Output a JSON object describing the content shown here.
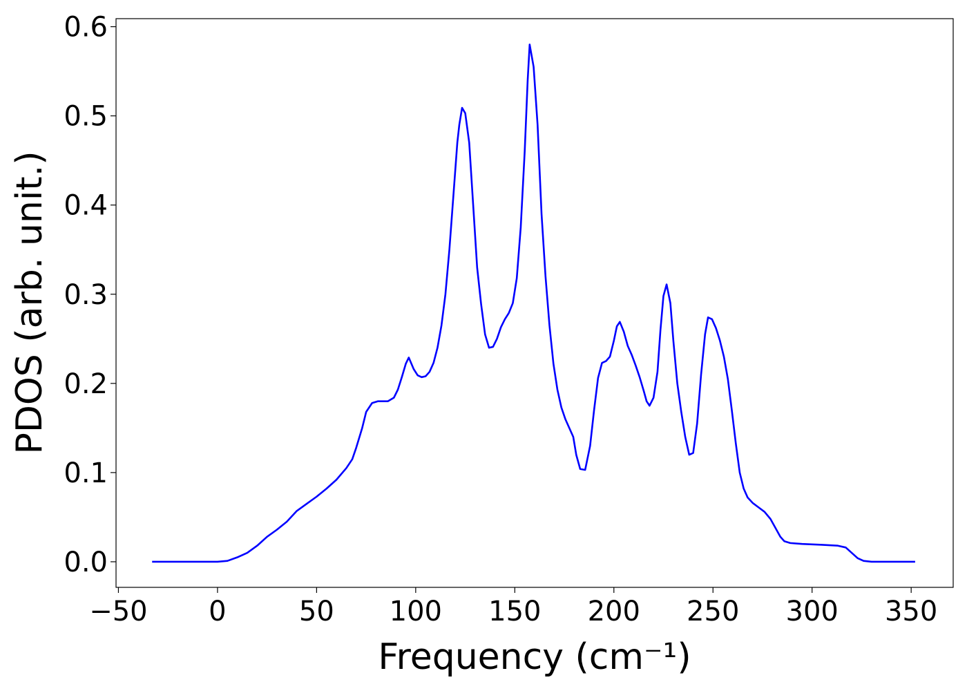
{
  "chart_data": {
    "type": "line",
    "x_label": "Frequency (cm⁻¹)",
    "y_label": "PDOS (arb. unit.)",
    "color": "#0000ff",
    "x": [
      -33,
      0,
      5,
      10,
      15,
      20,
      25,
      30,
      35,
      40,
      45,
      50,
      55,
      60,
      65,
      68,
      70,
      73,
      75,
      78,
      81,
      86,
      89,
      91,
      93,
      95,
      96.5,
      99,
      101,
      103,
      105,
      107,
      109,
      111,
      113,
      115,
      117,
      119,
      121,
      122,
      123.4,
      125,
      127,
      129,
      131,
      133,
      135,
      137,
      139,
      141,
      143,
      145,
      147,
      149,
      151,
      153,
      155,
      156.5,
      157.5,
      159.5,
      161.5,
      163.5,
      165.5,
      167.5,
      169.5,
      171.5,
      173.5,
      175.5,
      177.5,
      179.5,
      181,
      183,
      185.5,
      188,
      190,
      192,
      194,
      196,
      198,
      200,
      201.5,
      203,
      205,
      207,
      209,
      211,
      213,
      215,
      216.5,
      218,
      220,
      222,
      223.5,
      225,
      226.6,
      228.5,
      230,
      232,
      234,
      236,
      238,
      240,
      242,
      244,
      246,
      247.5,
      249.5,
      251.5,
      253.5,
      255.5,
      257.5,
      259.5,
      261.5,
      263.5,
      265.5,
      267.5,
      270,
      273,
      276,
      279,
      282,
      284,
      286,
      289,
      295,
      305,
      313,
      317,
      320,
      323,
      326,
      330,
      352
    ],
    "values": [
      0,
      0,
      0.001,
      0.005,
      0.01,
      0.018,
      0.028,
      0.036,
      0.045,
      0.057,
      0.065,
      0.073,
      0.082,
      0.092,
      0.105,
      0.115,
      0.128,
      0.15,
      0.168,
      0.178,
      0.18,
      0.18,
      0.184,
      0.193,
      0.207,
      0.222,
      0.229,
      0.216,
      0.209,
      0.207,
      0.208,
      0.213,
      0.223,
      0.24,
      0.265,
      0.3,
      0.35,
      0.41,
      0.47,
      0.49,
      0.509,
      0.503,
      0.47,
      0.4,
      0.33,
      0.289,
      0.255,
      0.24,
      0.241,
      0.25,
      0.263,
      0.272,
      0.279,
      0.29,
      0.318,
      0.375,
      0.46,
      0.54,
      0.58,
      0.555,
      0.49,
      0.39,
      0.32,
      0.265,
      0.222,
      0.193,
      0.173,
      0.16,
      0.15,
      0.14,
      0.12,
      0.104,
      0.103,
      0.13,
      0.17,
      0.206,
      0.223,
      0.225,
      0.23,
      0.248,
      0.264,
      0.269,
      0.258,
      0.242,
      0.232,
      0.22,
      0.207,
      0.192,
      0.18,
      0.175,
      0.184,
      0.213,
      0.26,
      0.298,
      0.311,
      0.29,
      0.248,
      0.2,
      0.168,
      0.14,
      0.12,
      0.122,
      0.155,
      0.21,
      0.255,
      0.274,
      0.272,
      0.262,
      0.248,
      0.23,
      0.205,
      0.17,
      0.133,
      0.1,
      0.082,
      0.072,
      0.066,
      0.061,
      0.056,
      0.048,
      0.036,
      0.028,
      0.023,
      0.021,
      0.02,
      0.019,
      0.018,
      0.016,
      0.01,
      0.004,
      0.001,
      0,
      0
    ],
    "xlim": [
      -51.2,
      371.2
    ],
    "ylim": [
      -0.0287,
      0.609
    ],
    "xticks": [
      {
        "value": -50,
        "label": "−50"
      },
      0,
      50,
      100,
      150,
      200,
      250,
      300,
      350
    ],
    "yticks": [
      {
        "value": 0,
        "label": "0.0"
      },
      0.1,
      0.2,
      0.3,
      0.4,
      0.5,
      0.6
    ],
    "grid": false
  }
}
